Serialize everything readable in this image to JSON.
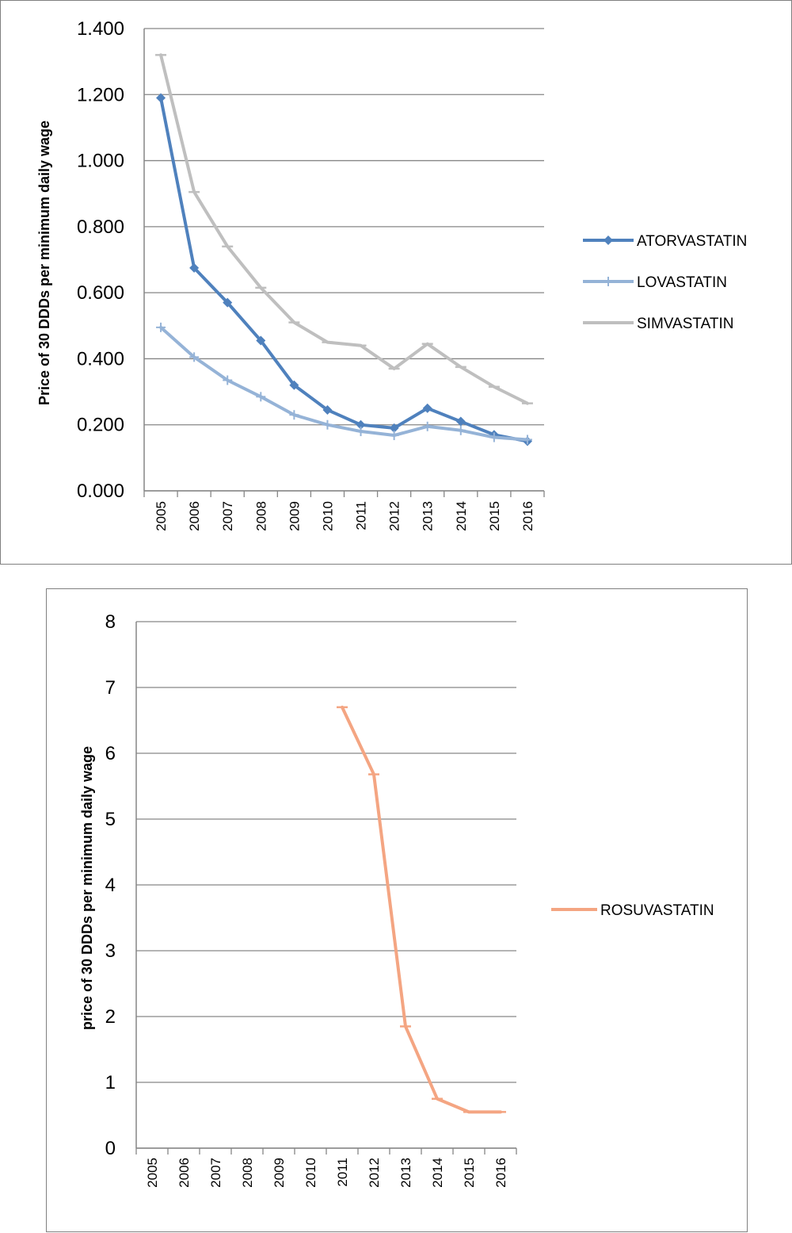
{
  "chart_data": [
    {
      "type": "line",
      "title": "",
      "xlabel": "",
      "ylabel": "Price of 30 DDDs per minimum daily wage",
      "ylim": [
        0,
        1.4
      ],
      "yticks": [
        "0.000",
        "0.200",
        "0.400",
        "0.600",
        "0.800",
        "1.000",
        "1.200",
        "1.400"
      ],
      "categories": [
        "2005",
        "2006",
        "2007",
        "2008",
        "2009",
        "2010",
        "2011",
        "2012",
        "2013",
        "2014",
        "2015",
        "2016"
      ],
      "grid": true,
      "legend_position": "right",
      "series": [
        {
          "name": "ATORVASTATIN",
          "color": "#4f81bd",
          "marker": "diamond",
          "values": [
            1.19,
            0.675,
            0.57,
            0.455,
            0.32,
            0.245,
            0.2,
            0.19,
            0.25,
            0.21,
            0.17,
            0.15
          ]
        },
        {
          "name": "LOVASTATIN",
          "color": "#95b3d7",
          "marker": "plus",
          "values": [
            0.495,
            0.405,
            0.335,
            0.285,
            0.23,
            0.2,
            0.18,
            0.168,
            0.195,
            0.183,
            0.162,
            0.155
          ]
        },
        {
          "name": "SIMVASTATIN",
          "color": "#bfbfbf",
          "marker": "dash",
          "values": [
            1.32,
            0.905,
            0.74,
            0.615,
            0.51,
            0.45,
            0.44,
            0.37,
            0.445,
            0.375,
            0.315,
            0.265
          ]
        }
      ]
    },
    {
      "type": "line",
      "title": "",
      "xlabel": "",
      "ylabel": "price of 30 DDDs per minimum daily wage",
      "ylim": [
        0,
        8
      ],
      "yticks": [
        "0",
        "1",
        "2",
        "3",
        "4",
        "5",
        "6",
        "7",
        "8"
      ],
      "categories": [
        "2005",
        "2006",
        "2007",
        "2008",
        "2009",
        "2010",
        "2011",
        "2012",
        "2013",
        "2014",
        "2015",
        "2016"
      ],
      "grid": true,
      "legend_position": "right",
      "series": [
        {
          "name": "ROSUVASTATIN",
          "color": "#f4a582",
          "marker": "dash",
          "values": [
            null,
            null,
            null,
            null,
            null,
            null,
            6.7,
            5.68,
            1.85,
            0.75,
            0.55,
            0.55
          ]
        }
      ]
    }
  ]
}
